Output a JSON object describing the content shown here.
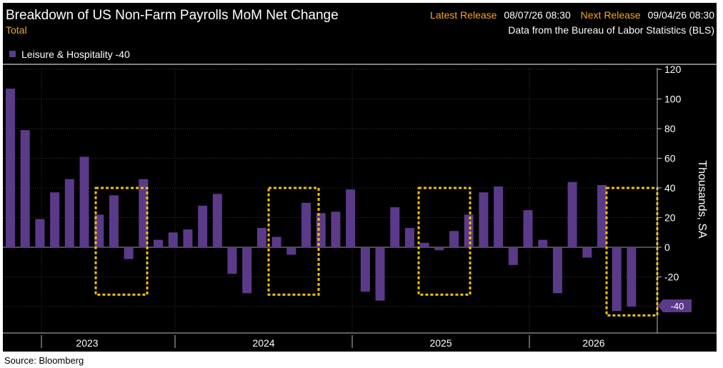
{
  "header": {
    "title": "Breakdown of US Non-Farm Payrolls MoM Net Change",
    "subtitle": "Total",
    "latest_label": "Latest Release",
    "latest_value": "08/07/26 08:30",
    "next_label": "Next Release",
    "next_value": "09/04/26 08:30",
    "source_note": "Data from the Bureau of Labor Statistics (BLS)"
  },
  "legend": {
    "label": "Leisure & Hospitality -40"
  },
  "source": "Source: Bloomberg",
  "colors": {
    "background": "#000000",
    "bar": "#5b3a8a",
    "grid": "#3a3a3a",
    "text": "#ffffff",
    "accent": "#f5a623",
    "highlight": "#f2c200"
  },
  "chart_data": {
    "type": "bar",
    "ylabel": "Thousands, SA",
    "ylim": [
      -48,
      120
    ],
    "yticks": [
      120,
      100,
      80,
      60,
      40,
      20,
      0,
      -20,
      -40
    ],
    "grid": true,
    "legend_position": "top-left",
    "year_labels": [
      "2023",
      "2024",
      "2025",
      "2026"
    ],
    "last_value_label": "-40",
    "series": [
      {
        "name": "Leisure & Hospitality",
        "values": [
          107,
          79,
          19,
          37,
          46,
          61,
          22,
          35,
          -8,
          46,
          5,
          10,
          12,
          28,
          36,
          -18,
          -31,
          13,
          7,
          -5,
          30,
          23,
          24,
          39,
          -30,
          -36,
          27,
          13,
          3,
          -2,
          11,
          22,
          37,
          41,
          -12,
          25,
          5,
          -31,
          44,
          -7,
          42,
          -43,
          -40
        ]
      }
    ],
    "highlights": [
      {
        "y_range": [
          -32,
          40
        ]
      },
      {
        "y_range": [
          -32,
          40
        ]
      },
      {
        "y_range": [
          -32,
          40
        ]
      },
      {
        "y_range": [
          -46,
          40
        ]
      }
    ]
  }
}
